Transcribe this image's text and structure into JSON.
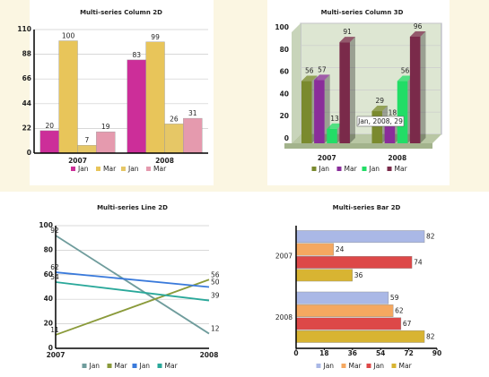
{
  "chart_data": [
    {
      "type": "column",
      "title": "Multi-series Column 2D",
      "categories": [
        "2007",
        "2008"
      ],
      "series": [
        {
          "name": "Jan",
          "color": "#cc2e99",
          "values": [
            20,
            83
          ]
        },
        {
          "name": "Mar",
          "color": "#e8c55a",
          "values": [
            100,
            99
          ]
        },
        {
          "name": "Jan",
          "color": "#e6c766",
          "values": [
            7,
            26
          ]
        },
        {
          "name": "Mar",
          "color": "#e59aae",
          "values": [
            19,
            31
          ]
        }
      ],
      "ylim": [
        0,
        110
      ],
      "yticks": [
        0,
        22,
        44,
        66,
        88,
        110
      ],
      "grid": true
    },
    {
      "type": "column3d",
      "title": "Multi-series Column 3D",
      "categories": [
        "2007",
        "2008"
      ],
      "series": [
        {
          "name": "Jan",
          "color": "#7a8a2e",
          "values": [
            56,
            29
          ]
        },
        {
          "name": "Mar",
          "color": "#8a2d9a",
          "values": [
            57,
            18
          ]
        },
        {
          "name": "Jan",
          "color": "#22dd66",
          "values": [
            13,
            56
          ]
        },
        {
          "name": "Mar",
          "color": "#7a2a4a",
          "values": [
            91,
            96
          ]
        }
      ],
      "ylim": [
        0,
        100
      ],
      "yticks": [
        0,
        20,
        40,
        60,
        80,
        100
      ],
      "grid": true,
      "tooltip": "Jan, 2008, 29"
    },
    {
      "type": "line",
      "title": "Multi-series Line 2D",
      "categories": [
        "2007",
        "2008"
      ],
      "series": [
        {
          "name": "Jan",
          "color": "#6f9c9c",
          "values": [
            92,
            12
          ]
        },
        {
          "name": "Mar",
          "color": "#8a9a3a",
          "values": [
            11,
            56
          ]
        },
        {
          "name": "Jan",
          "color": "#3a7adb",
          "values": [
            62,
            50
          ]
        },
        {
          "name": "Mar",
          "color": "#2aa89a",
          "values": [
            54,
            39
          ]
        }
      ],
      "ylim": [
        0,
        100
      ],
      "yticks": [
        0,
        20,
        40,
        60,
        80,
        100
      ],
      "grid": true
    },
    {
      "type": "bar",
      "title": "Multi-series Bar 2D",
      "categories": [
        "2007",
        "2008"
      ],
      "series": [
        {
          "name": "Jan",
          "color": "#aab8e6",
          "values": [
            82,
            59
          ]
        },
        {
          "name": "Mar",
          "color": "#f5a860",
          "values": [
            24,
            62
          ]
        },
        {
          "name": "Jan",
          "color": "#dd4848",
          "values": [
            74,
            67
          ]
        },
        {
          "name": "Mar",
          "color": "#d8b432",
          "values": [
            36,
            82
          ]
        }
      ],
      "xlim": [
        0,
        90
      ],
      "xticks": [
        0,
        18,
        36,
        54,
        72,
        90
      ],
      "grid": false
    }
  ]
}
